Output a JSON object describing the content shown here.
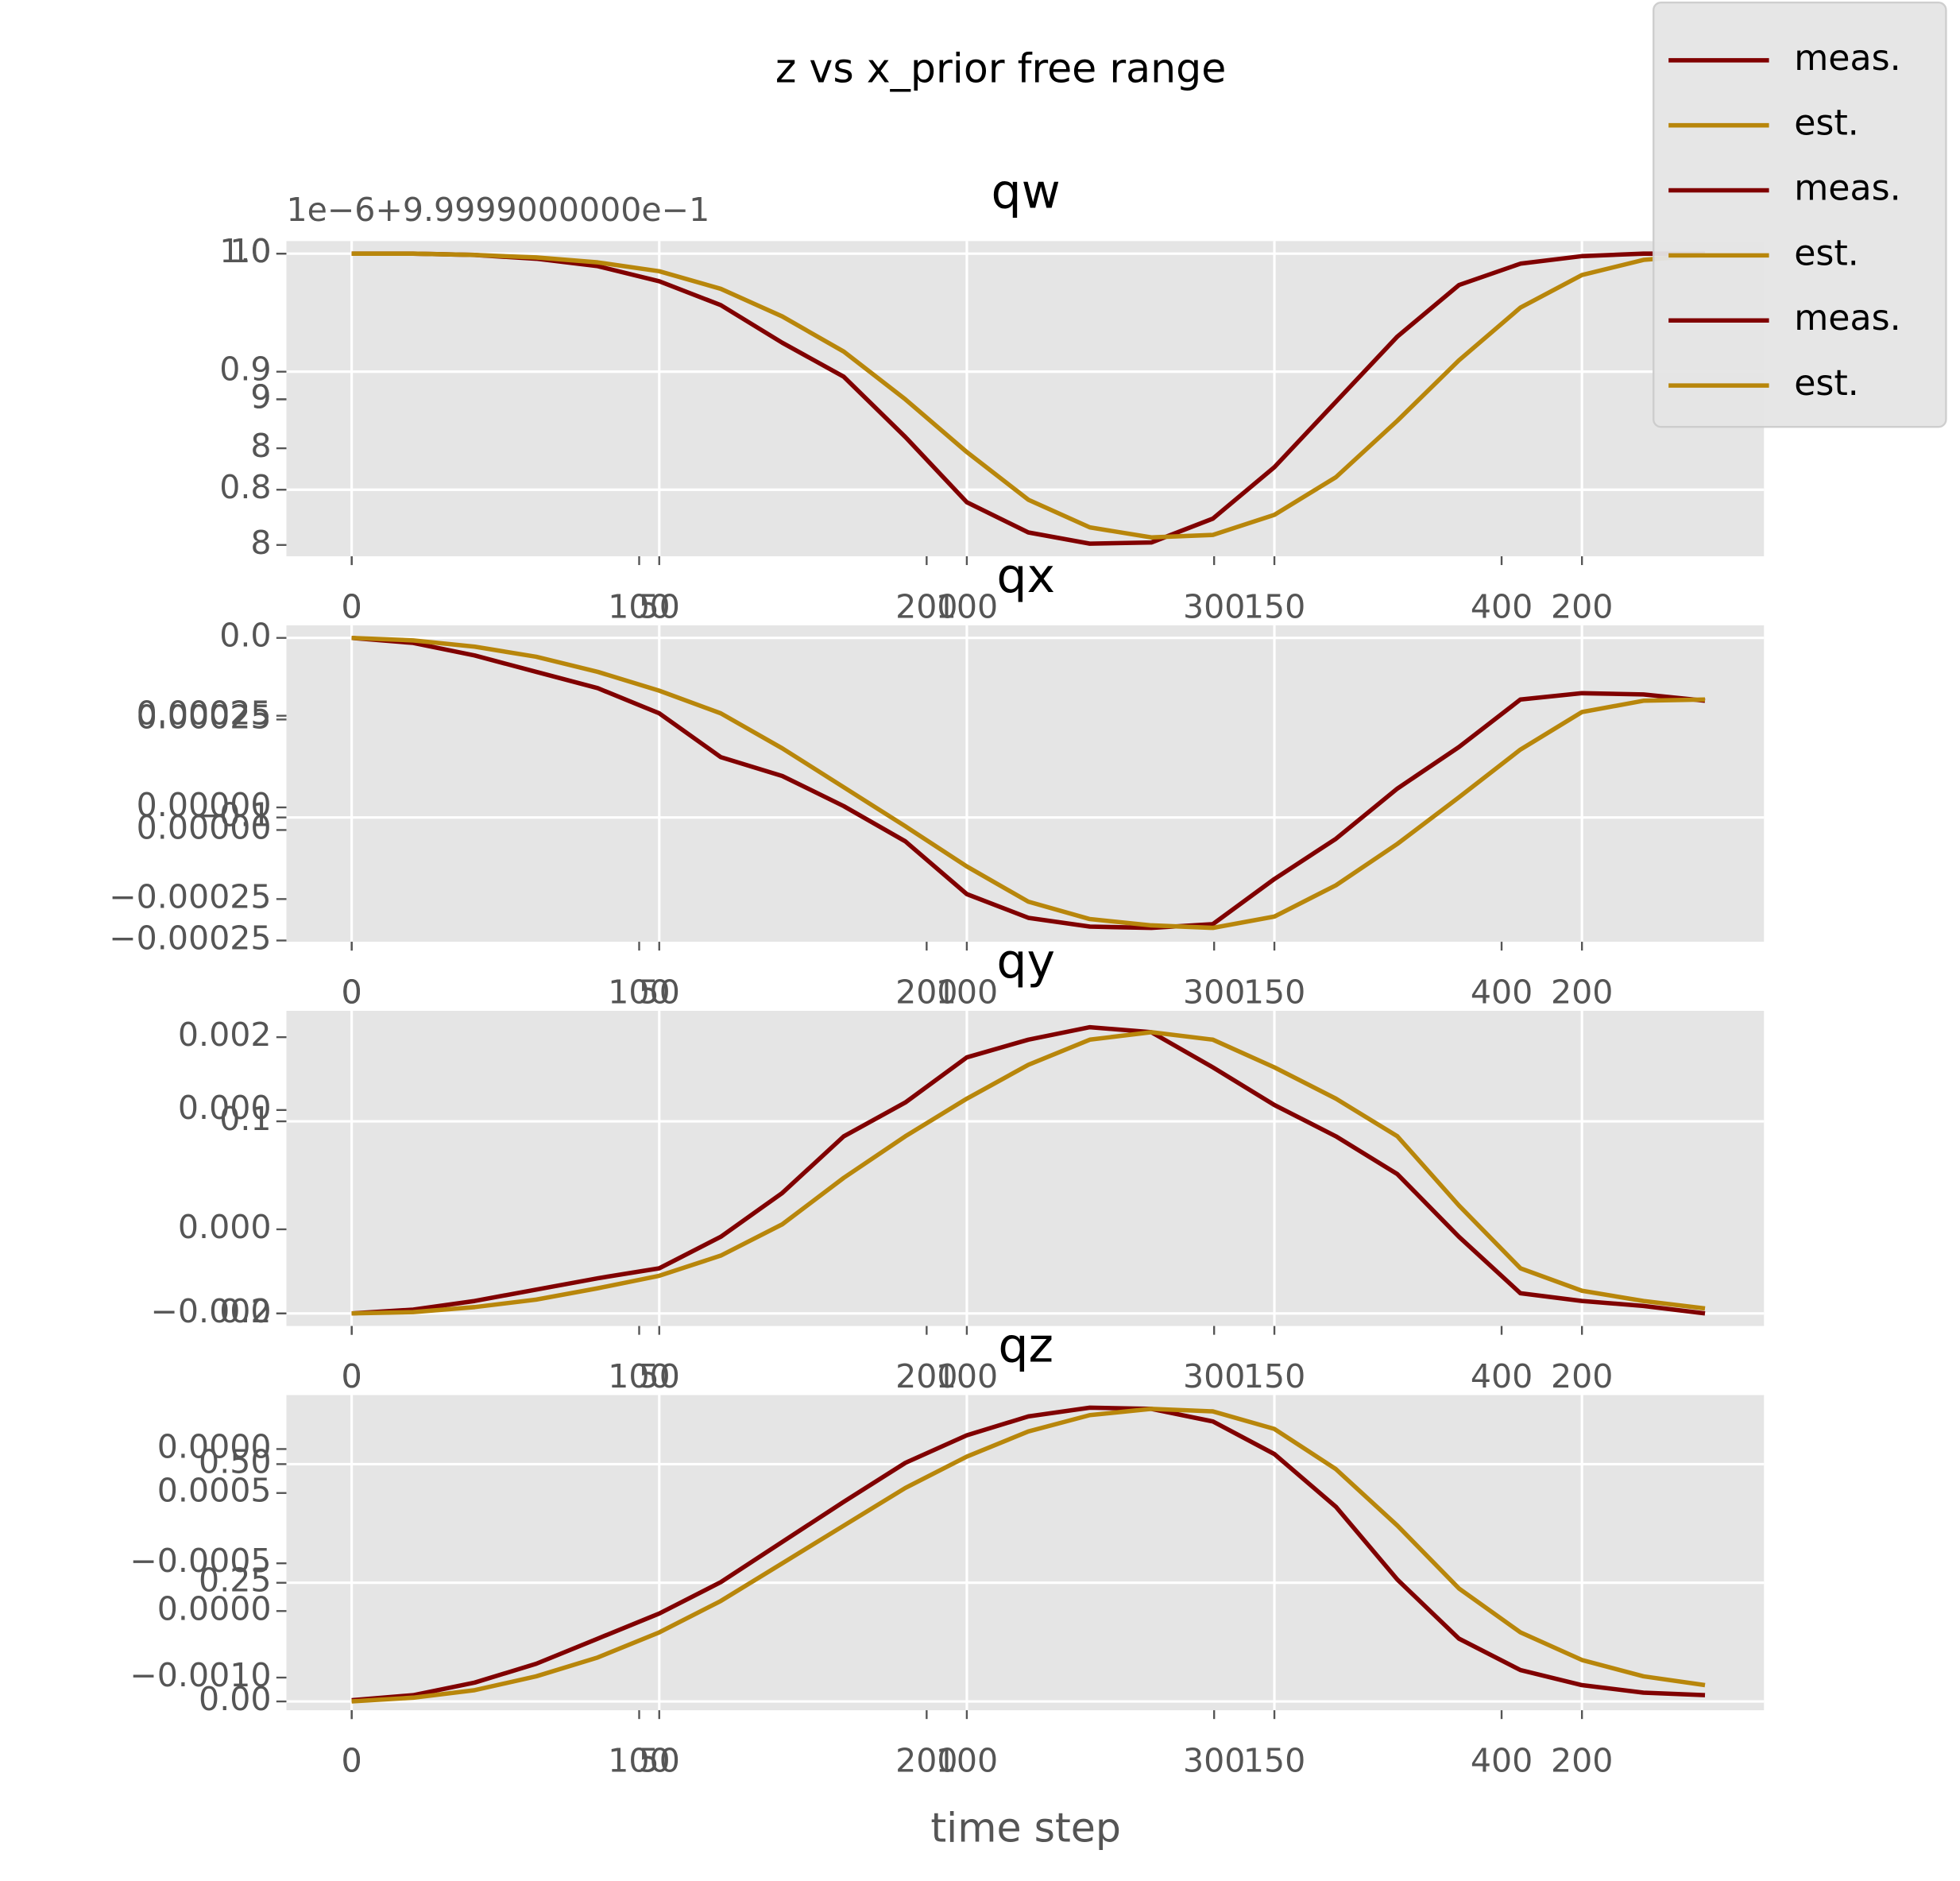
{
  "title": "z vs x_prior free range",
  "legend_loc": "upper right",
  "chart_data": [
    {
      "type": "line",
      "title": "qw",
      "offset_text": "1e−6+9.9999000000e−1",
      "grid": true,
      "x": [
        0,
        10,
        20,
        30,
        40,
        50,
        60,
        70,
        80,
        90,
        100,
        110,
        120,
        130,
        140,
        150,
        160,
        170,
        180,
        190,
        200,
        210,
        220
      ],
      "xaxes": [
        {
          "xlim": [
            -10.61,
            229.59
          ],
          "xticks": [
            0,
            50,
            100,
            150,
            200
          ]
        },
        {
          "xlim": [
            -22.71,
            491.27
          ],
          "xticks": [
            0,
            100,
            200,
            300,
            400
          ]
        }
      ],
      "yaxes": [
        {
          "ylim": [
            0.74362,
            1.01064
          ],
          "yticks": [
            {
              "value": 1,
              "label": "1.0"
            },
            0.9,
            0.8
          ]
        },
        {
          "ylim": [
            7.9224,
            10.0862
          ],
          "yticks": [
            10,
            9,
            8
          ]
        },
        {
          "ylim": [
            5.7949,
            12.2308
          ],
          "yticks": [
            9,
            8
          ]
        }
      ],
      "series": [
        {
          "name": "meas.",
          "color": "#800000",
          "values": [
            1.0,
            1.0,
            0.9989,
            0.9957,
            0.9894,
            0.9766,
            0.9564,
            0.9245,
            0.8957,
            0.8447,
            0.7894,
            0.7638,
            0.7543,
            0.7553,
            0.7755,
            0.8191,
            0.8745,
            0.9298,
            0.9734,
            0.9915,
            0.9979,
            1.0,
            1.0
          ]
        },
        {
          "name": "est.",
          "color": "#b8860b",
          "values": [
            1.0,
            1.0,
            0.9989,
            0.9968,
            0.9926,
            0.9851,
            0.9702,
            0.9468,
            0.917,
            0.8766,
            0.8319,
            0.7915,
            0.7681,
            0.7596,
            0.7617,
            0.7787,
            0.8106,
            0.8585,
            0.9096,
            0.9543,
            0.9819,
            0.9947,
            0.9989
          ]
        }
      ]
    },
    {
      "type": "line",
      "title": "qx",
      "grid": true,
      "x": [
        0,
        10,
        20,
        30,
        40,
        50,
        60,
        70,
        80,
        90,
        100,
        110,
        120,
        130,
        140,
        150,
        160,
        170,
        180,
        190,
        200,
        210,
        220
      ],
      "xaxes": [
        {
          "xlim": [
            -10.61,
            229.59
          ],
          "xticks": [
            0,
            50,
            100,
            150,
            200
          ]
        },
        {
          "xlim": [
            -22.71,
            491.27
          ],
          "xticks": [
            0,
            100,
            200,
            300,
            400
          ]
        }
      ],
      "yaxes": [
        {
          "ylim": [
            -0.16923,
            0.007
          ],
          "yticks": [
            {
              "value": 0,
              "label": "0.0"
            },
            {
              "value": -0.1,
              "label": "−0.1"
            }
          ]
        },
        {
          "ylim": [
            -0.00036644,
            0.00049658
          ],
          "yticks": [
            0.00025,
            {
              "value": 0,
              "label": "0.00000"
            },
            {
              "value": -0.00025,
              "label": "−0.00025"
            }
          ]
        },
        {
          "ylim": [
            -0.00025284,
            0.00046307
          ],
          "yticks": [
            0.00025,
            {
              "value": 0,
              "label": "0.00000"
            },
            {
              "value": -0.00025,
              "label": "−0.00025"
            }
          ]
        }
      ],
      "series": [
        {
          "name": "meas.",
          "color": "#800000",
          "values": [
            0,
            -0.0028,
            -0.0098,
            -0.0189,
            -0.028,
            -0.042,
            -0.0664,
            -0.0769,
            -0.0937,
            -0.1133,
            -0.1427,
            -0.1559,
            -0.1608,
            -0.1615,
            -0.1594,
            -0.1343,
            -0.1119,
            -0.0839,
            -0.0608,
            -0.0343,
            -0.0308,
            -0.0315,
            -0.035
          ]
        },
        {
          "name": "est.",
          "color": "#b8860b",
          "values": [
            0,
            -0.0014,
            -0.0049,
            -0.0105,
            -0.0189,
            -0.0294,
            -0.042,
            -0.0615,
            -0.0832,
            -0.1049,
            -0.1273,
            -0.1469,
            -0.1566,
            -0.1601,
            -0.1615,
            -0.1552,
            -0.1378,
            -0.1147,
            -0.0888,
            -0.0622,
            -0.0413,
            -0.035,
            -0.0343
          ]
        }
      ]
    },
    {
      "type": "line",
      "title": "qy",
      "grid": true,
      "x": [
        0,
        10,
        20,
        30,
        40,
        50,
        60,
        70,
        80,
        90,
        100,
        110,
        120,
        130,
        140,
        150,
        160,
        170,
        180,
        190,
        200,
        210,
        220
      ],
      "xaxes": [
        {
          "xlim": [
            -10.61,
            229.59
          ],
          "xticks": [
            0,
            50,
            100,
            150,
            200
          ]
        },
        {
          "xlim": [
            -22.71,
            491.27
          ],
          "xticks": [
            0,
            100,
            200,
            300,
            400
          ]
        }
      ],
      "yaxes": [
        {
          "ylim": [
            -0.006536,
            0.15752
          ],
          "yticks": [
            0.1,
            {
              "value": 0,
              "label": "0.0"
            }
          ]
        },
        {
          "ylim": [
            -0.005931,
            0.0027241
          ],
          "yticks": [
            0.002,
            {
              "value": 0,
              "label": "0.000"
            }
          ]
        },
        {
          "ylim": [
            -0.0022985,
            0.005194
          ],
          "yticks": [
            {
              "value": 0,
              "label": "0.000"
            },
            {
              "value": -0.002,
              "label": "−0.002"
            }
          ]
        }
      ],
      "series": [
        {
          "name": "meas.",
          "color": "#800000",
          "values": [
            0,
            0.002,
            0.0065,
            0.0124,
            0.0183,
            0.0235,
            0.0399,
            0.0627,
            0.0922,
            0.1098,
            0.1333,
            0.1425,
            0.149,
            0.1464,
            0.1281,
            0.1085,
            0.0922,
            0.0725,
            0.0399,
            0.0105,
            0.0065,
            0.0039,
            0
          ]
        },
        {
          "name": "est.",
          "color": "#b8860b",
          "values": [
            0,
            0.0007,
            0.0033,
            0.0072,
            0.0131,
            0.0196,
            0.0301,
            0.0464,
            0.0706,
            0.0922,
            0.1118,
            0.1294,
            0.1425,
            0.1464,
            0.1425,
            0.1281,
            0.1118,
            0.0922,
            0.0562,
            0.0235,
            0.0118,
            0.0065,
            0.0026
          ]
        }
      ]
    },
    {
      "type": "line",
      "title": "qz",
      "xlabel": "time step",
      "grid": true,
      "x": [
        0,
        10,
        20,
        30,
        40,
        50,
        60,
        70,
        80,
        90,
        100,
        110,
        120,
        130,
        140,
        150,
        160,
        170,
        180,
        190,
        200,
        210,
        220
      ],
      "xaxes": [
        {
          "xlim": [
            -10.61,
            229.59
          ],
          "xticks": [
            0,
            50,
            100,
            150,
            200
          ]
        },
        {
          "xlim": [
            -22.71,
            491.27
          ],
          "xticks": [
            0,
            100,
            200,
            300,
            400
          ]
        }
      ],
      "yaxes": [
        {
          "ylim": [
            -0.018519,
            0.6455
          ],
          "yticks": [
            {
              "value": 0.5,
              "label": "0.50"
            },
            0.25,
            {
              "value": 0,
              "label": "0.00"
            }
          ]
        },
        {
          "ylim": [
            -0.0011429,
            0.00023626
          ],
          "yticks": [
            {
              "value": 0,
              "label": "0.0000"
            },
            {
              "value": -0.0005,
              "label": "−0.0005"
            },
            {
              "value": -0.001,
              "label": "−0.0010"
            }
          ]
        },
        {
          "ylim": [
            -0.00042021,
            0.00091489
          ],
          "yticks": [
            0.0005,
            {
              "value": 0,
              "label": "0.0000"
            }
          ]
        }
      ],
      "series": [
        {
          "name": "meas.",
          "color": "#800000",
          "values": [
            0.0026,
            0.0132,
            0.0397,
            0.0794,
            0.1323,
            0.1852,
            0.2513,
            0.336,
            0.4206,
            0.5026,
            0.5608,
            0.6005,
            0.619,
            0.6164,
            0.5899,
            0.5212,
            0.4101,
            0.2566,
            0.1323,
            0.0661,
            0.0344,
            0.0185,
            0.0132
          ]
        },
        {
          "name": "est.",
          "color": "#b8860b",
          "values": [
            0,
            0.0079,
            0.0238,
            0.0529,
            0.0926,
            0.1455,
            0.2116,
            0.291,
            0.3704,
            0.4497,
            0.5159,
            0.5688,
            0.6032,
            0.6164,
            0.6111,
            0.5741,
            0.4894,
            0.3704,
            0.2381,
            0.1455,
            0.0873,
            0.0529,
            0.0344
          ]
        }
      ]
    }
  ]
}
